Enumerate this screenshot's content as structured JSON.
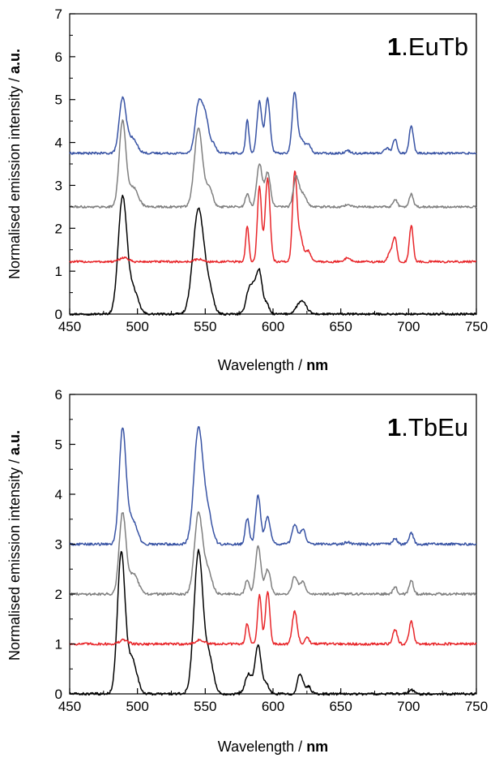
{
  "chart_data": [
    {
      "type": "line",
      "panel_label": {
        "bold": "1",
        "rest": ".EuTb"
      },
      "xlabel": {
        "text": "Wavelength / ",
        "bold": "nm"
      },
      "ylabel": {
        "text": "Normalised emission intensity / ",
        "bold": "a.u."
      },
      "xlim": [
        450,
        750
      ],
      "ylim": [
        0,
        7
      ],
      "xticks": [
        450,
        500,
        550,
        600,
        650,
        700,
        750
      ],
      "yticks": [
        0,
        1,
        2,
        3,
        4,
        5,
        6,
        7
      ],
      "series": [
        {
          "color": "#000000",
          "offset": 0,
          "peaks": [
            [
              489,
              2.72,
              3.2
            ],
            [
              497,
              0.55,
              3.5
            ],
            [
              545,
              2.45,
              4.0
            ],
            [
              553,
              0.5,
              3.0
            ],
            [
              582,
              0.5,
              2.2
            ],
            [
              586,
              0.55,
              2.2
            ],
            [
              590,
              0.92,
              2.0
            ],
            [
              595,
              0.25,
              2.0
            ],
            [
              621,
              0.3,
              3.5
            ]
          ]
        },
        {
          "color": "#e8262a",
          "offset": 1.22,
          "peaks": [
            [
              490,
              0.1,
              3.0
            ],
            [
              545,
              0.06,
              3.0
            ],
            [
              581,
              0.82,
              1.2
            ],
            [
              590,
              1.75,
              1.5
            ],
            [
              596,
              1.95,
              1.8
            ],
            [
              616,
              2.05,
              1.6
            ],
            [
              620,
              0.6,
              2.0
            ],
            [
              626,
              0.25,
              2.0
            ],
            [
              655,
              0.1,
              2.0
            ],
            [
              687,
              0.25,
              2.0
            ],
            [
              690,
              0.5,
              1.4
            ],
            [
              702,
              0.85,
              1.4
            ]
          ]
        },
        {
          "color": "#7f7f7f",
          "offset": 2.5,
          "peaks": [
            [
              489,
              1.98,
              2.5
            ],
            [
              497,
              0.45,
              3.5
            ],
            [
              545,
              1.85,
              3.0
            ],
            [
              553,
              0.45,
              2.5
            ],
            [
              581,
              0.3,
              1.5
            ],
            [
              590,
              1.0,
              2.0
            ],
            [
              596,
              0.8,
              2.0
            ],
            [
              617,
              0.67,
              2.0
            ],
            [
              622,
              0.3,
              2.5
            ],
            [
              655,
              0.05,
              2.0
            ],
            [
              690,
              0.18,
              1.5
            ],
            [
              702,
              0.3,
              1.5
            ]
          ]
        },
        {
          "color": "#3853a4",
          "offset": 3.75,
          "peaks": [
            [
              489,
              1.25,
              2.5
            ],
            [
              496,
              0.35,
              3.5
            ],
            [
              545,
              1.12,
              2.5
            ],
            [
              550,
              0.85,
              2.5
            ],
            [
              556,
              0.2,
              2.0
            ],
            [
              581,
              0.78,
              1.2
            ],
            [
              590,
              1.2,
              1.8
            ],
            [
              596,
              1.28,
              1.8
            ],
            [
              616,
              1.43,
              1.8
            ],
            [
              621,
              0.3,
              2.0
            ],
            [
              626,
              0.2,
              2.0
            ],
            [
              655,
              0.06,
              2.0
            ],
            [
              684,
              0.12,
              2.0
            ],
            [
              690,
              0.33,
              1.5
            ],
            [
              702,
              0.65,
              1.5
            ]
          ]
        }
      ]
    },
    {
      "type": "line",
      "panel_label": {
        "bold": "1",
        "rest": ".TbEu"
      },
      "xlabel": {
        "text": "Wavelength / ",
        "bold": "nm"
      },
      "ylabel": {
        "text": "Normalised emission intensity / ",
        "bold": "a.u."
      },
      "xlim": [
        450,
        750
      ],
      "ylim": [
        0,
        6
      ],
      "xticks": [
        450,
        500,
        550,
        600,
        650,
        700,
        750
      ],
      "yticks": [
        0,
        1,
        2,
        3,
        4,
        5,
        6
      ],
      "series": [
        {
          "color": "#000000",
          "offset": 0,
          "peaks": [
            [
              488,
              2.8,
              2.8
            ],
            [
              496,
              0.7,
              3.5
            ],
            [
              545,
              2.85,
              3.3
            ],
            [
              553,
              0.7,
              3.0
            ],
            [
              582,
              0.4,
              2.5
            ],
            [
              589,
              0.98,
              2.2
            ],
            [
              595,
              0.2,
              2.0
            ],
            [
              620,
              0.4,
              2.0
            ],
            [
              626,
              0.15,
              2.0
            ],
            [
              702,
              0.08,
              2.0
            ]
          ]
        },
        {
          "color": "#e8262a",
          "offset": 1.0,
          "peaks": [
            [
              490,
              0.08,
              3.0
            ],
            [
              546,
              0.08,
              3.0
            ],
            [
              581,
              0.42,
              1.3
            ],
            [
              590,
              1.0,
              1.4
            ],
            [
              596,
              1.05,
              1.6
            ],
            [
              616,
              0.65,
              1.8
            ],
            [
              625,
              0.15,
              1.5
            ],
            [
              690,
              0.3,
              1.6
            ],
            [
              702,
              0.45,
              1.6
            ]
          ]
        },
        {
          "color": "#7f7f7f",
          "offset": 2.0,
          "peaks": [
            [
              489,
              1.62,
              2.5
            ],
            [
              497,
              0.4,
              3.5
            ],
            [
              545,
              1.6,
              3.0
            ],
            [
              552,
              0.45,
              3.0
            ],
            [
              581,
              0.3,
              1.5
            ],
            [
              589,
              0.95,
              2.0
            ],
            [
              596,
              0.5,
              2.0
            ],
            [
              616,
              0.35,
              2.0
            ],
            [
              622,
              0.25,
              2.0
            ],
            [
              690,
              0.15,
              1.5
            ],
            [
              702,
              0.28,
              1.5
            ]
          ]
        },
        {
          "color": "#3853a4",
          "offset": 3.0,
          "peaks": [
            [
              489,
              2.28,
              2.5
            ],
            [
              496,
              0.5,
              3.5
            ],
            [
              545,
              2.3,
              3.3
            ],
            [
              552,
              0.6,
              3.0
            ],
            [
              581,
              0.52,
              1.5
            ],
            [
              589,
              0.98,
              1.8
            ],
            [
              596,
              0.55,
              2.0
            ],
            [
              616,
              0.38,
              2.0
            ],
            [
              622,
              0.3,
              2.0
            ],
            [
              655,
              0.04,
              2.0
            ],
            [
              690,
              0.12,
              1.5
            ],
            [
              702,
              0.23,
              1.5
            ]
          ]
        }
      ]
    }
  ]
}
